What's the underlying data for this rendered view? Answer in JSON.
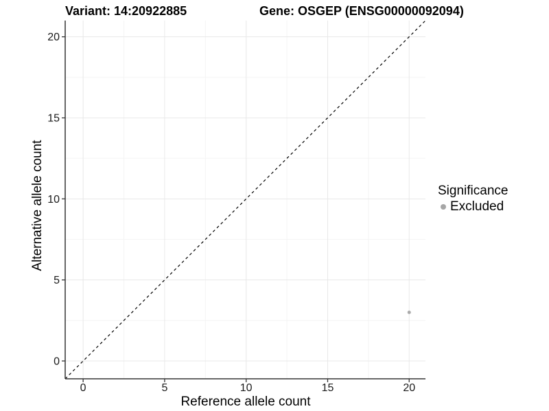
{
  "header": {
    "variant_title": "Variant: 14:20922885",
    "gene_title": "Gene: OSGEP (ENSG00000092094)"
  },
  "chart_data": {
    "type": "scatter",
    "titles": [
      "Variant: 14:20922885",
      "Gene: OSGEP (ENSG00000092094)"
    ],
    "xlabel": "Reference allele count",
    "ylabel": "Alternative allele count",
    "xlim": [
      -1.1,
      21
    ],
    "ylim": [
      -1.1,
      21
    ],
    "xticks": [
      0,
      5,
      10,
      15,
      20
    ],
    "yticks": [
      0,
      5,
      10,
      15,
      20
    ],
    "x_minor_gridlines": [
      2.5,
      7.5,
      12.5,
      17.5
    ],
    "y_minor_gridlines": [
      2.5,
      7.5,
      12.5,
      17.5
    ],
    "grid": true,
    "series": [
      {
        "name": "Excluded",
        "color": "#aaaaaa",
        "points": [
          {
            "x": 20,
            "y": 3
          }
        ]
      }
    ],
    "reference_line": {
      "type": "identity",
      "style": "dashed",
      "color": "#000000"
    },
    "legend": {
      "title": "Significance",
      "position": "right",
      "items": [
        {
          "label": "Excluded",
          "color": "#a6a6a6"
        }
      ]
    },
    "colors": {
      "axis": "#333333",
      "grid_major": "#e8e8e8",
      "grid_minor": "#f4f4f4",
      "tick_label": "#1a1a1a",
      "background": "#ffffff"
    }
  }
}
